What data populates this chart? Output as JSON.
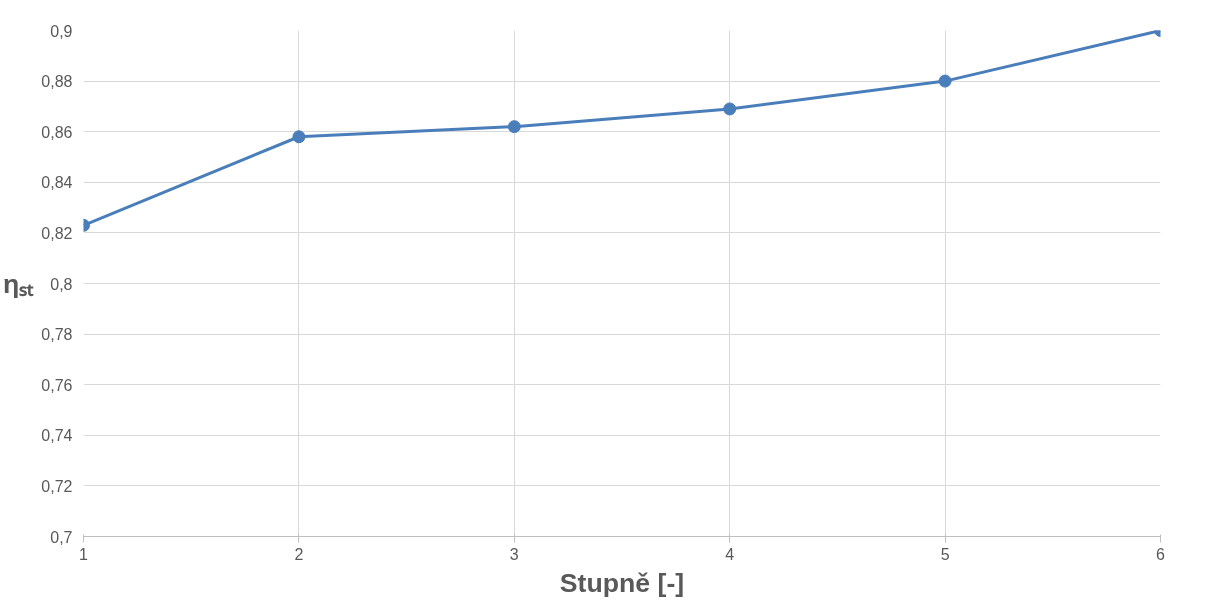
{
  "chart_data": {
    "type": "line",
    "xlabel": "Stupně [-]",
    "ylabel": "ηₛₜ",
    "x": [
      1,
      2,
      3,
      4,
      5,
      6
    ],
    "series": [
      {
        "color": "#4a7ebb",
        "values": [
          0.823,
          0.858,
          0.862,
          0.869,
          0.88,
          0.9
        ]
      }
    ],
    "xlim": [
      1,
      6
    ],
    "xticks": [
      1,
      2,
      3,
      4,
      5,
      6
    ],
    "ylim": [
      0.7,
      0.9
    ],
    "yticks": [
      {
        "value": 0.7,
        "label": "0,7"
      },
      {
        "value": 0.72,
        "label": "0,72"
      },
      {
        "value": 0.74,
        "label": "0,74"
      },
      {
        "value": 0.76,
        "label": "0,76"
      },
      {
        "value": 0.78,
        "label": "0,78"
      },
      {
        "value": 0.8,
        "label": "0,8"
      },
      {
        "value": 0.82,
        "label": "0,82"
      },
      {
        "value": 0.84,
        "label": "0,84"
      },
      {
        "value": 0.86,
        "label": "0,86"
      },
      {
        "value": 0.88,
        "label": "0,88"
      },
      {
        "value": 0.9,
        "label": "0,9"
      }
    ],
    "grid": true,
    "marker": "circle",
    "line_style": "solid"
  }
}
